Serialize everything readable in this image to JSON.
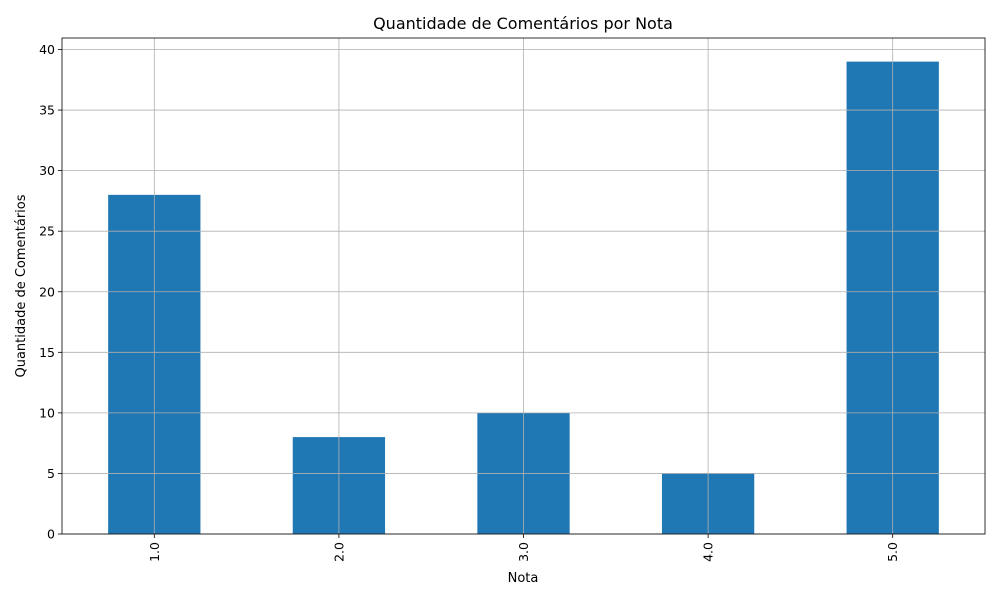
{
  "chart_data": {
    "type": "bar",
    "title": "Quantidade de Comentários por Nota",
    "xlabel": "Nota",
    "ylabel": "Quantidade de Comentários",
    "categories": [
      "1.0",
      "2.0",
      "3.0",
      "4.0",
      "5.0"
    ],
    "values": [
      28,
      8,
      10,
      5,
      39
    ],
    "ylim": [
      0,
      40.95
    ],
    "yticks": [
      0,
      5,
      10,
      15,
      20,
      25,
      30,
      35,
      40
    ],
    "xtick_rotation": "vertical",
    "grid": true,
    "legend": "none",
    "bar_color": "#1f77b4"
  }
}
